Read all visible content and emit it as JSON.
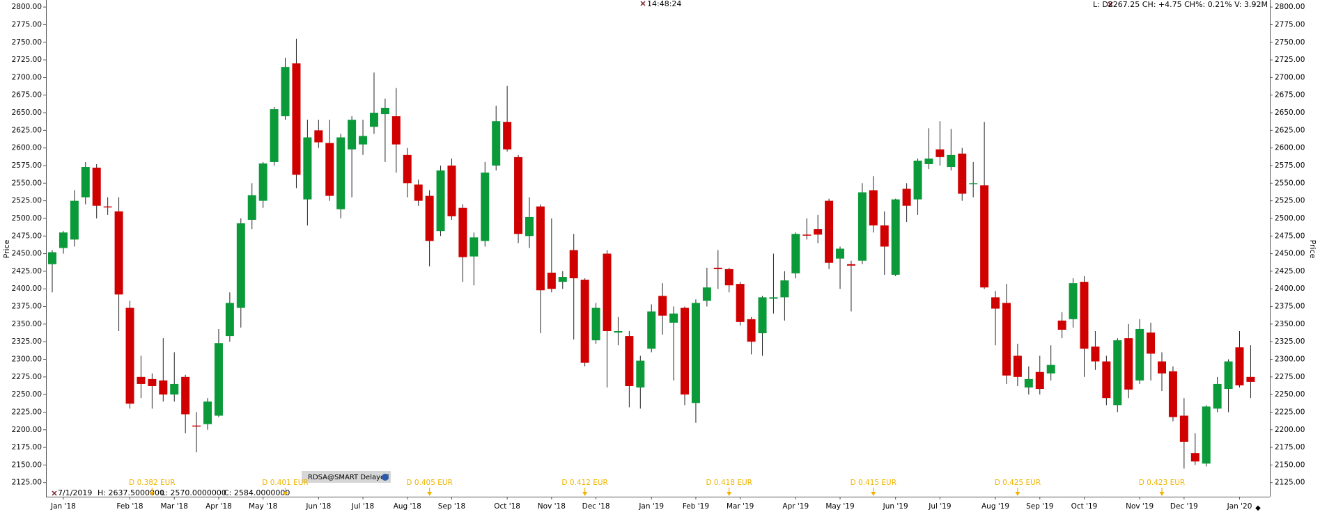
{
  "chart_data": {
    "type": "candlestick",
    "y_label": "Price",
    "time": "14:48:24",
    "quote": "L: D2267.25 CH: +4.75 CH%: 0.21% V: 3.92M",
    "info": {
      "date": "7/1/2019",
      "high": "H: 2637.5000000",
      "low": "L: 2570.0000000",
      "close": "C: 2584.0000000"
    },
    "symbol": "RDSA@SMART Delayed",
    "up_color": "#0b9a39",
    "down_color": "#d00000",
    "annotation_color": "#f0b400",
    "ylim": [
      2105,
      2810
    ],
    "yticks": [
      {
        "value": 2125,
        "label": "2125.00"
      },
      {
        "value": 2150,
        "label": "2150.00"
      },
      {
        "value": 2175,
        "label": "2175.00"
      },
      {
        "value": 2200,
        "label": "2200.00"
      },
      {
        "value": 2225,
        "label": "2225.00"
      },
      {
        "value": 2250,
        "label": "2250.00"
      },
      {
        "value": 2275,
        "label": "2275.00"
      },
      {
        "value": 2300,
        "label": "2300.00"
      },
      {
        "value": 2325,
        "label": "2325.00"
      },
      {
        "value": 2350,
        "label": "2350.00"
      },
      {
        "value": 2375,
        "label": "2375.00"
      },
      {
        "value": 2400,
        "label": "2400.00"
      },
      {
        "value": 2425,
        "label": "2425.00"
      },
      {
        "value": 2450,
        "label": "2450.00"
      },
      {
        "value": 2475,
        "label": "2475.00"
      },
      {
        "value": 2500,
        "label": "2500.00"
      },
      {
        "value": 2525,
        "label": "2525.00"
      },
      {
        "value": 2550,
        "label": "2550.00"
      },
      {
        "value": 2575,
        "label": "2575.00"
      },
      {
        "value": 2600,
        "label": "2600.00"
      },
      {
        "value": 2625,
        "label": "2625.00"
      },
      {
        "value": 2650,
        "label": "2650.00"
      },
      {
        "value": 2675,
        "label": "2675.00"
      },
      {
        "value": 2700,
        "label": "2700.00"
      },
      {
        "value": 2725,
        "label": "2725.00"
      },
      {
        "value": 2750,
        "label": "2750.00"
      },
      {
        "value": 2775,
        "label": "2775.00"
      },
      {
        "value": 2800,
        "label": "2800.00"
      }
    ],
    "categories": [
      null,
      "Jan '18",
      null,
      null,
      null,
      null,
      null,
      "Feb '18",
      null,
      null,
      null,
      "Mar '18",
      null,
      null,
      null,
      "Apr '18",
      null,
      null,
      null,
      "May '18",
      null,
      null,
      null,
      null,
      "Jun '18",
      null,
      null,
      null,
      "Jul '18",
      null,
      null,
      null,
      "Aug '18",
      null,
      null,
      null,
      "Sep '18",
      null,
      null,
      null,
      null,
      "Oct '18",
      null,
      null,
      null,
      "Nov '18",
      null,
      null,
      null,
      "Dec '18",
      null,
      null,
      null,
      null,
      "Jan '19",
      null,
      null,
      null,
      "Feb '19",
      null,
      null,
      null,
      "Mar '19",
      null,
      null,
      null,
      null,
      "Apr '19",
      null,
      null,
      null,
      "May '19",
      null,
      null,
      null,
      null,
      "Jun '19",
      null,
      null,
      null,
      "Jul '19",
      null,
      null,
      null,
      null,
      "Aug '19",
      null,
      null,
      null,
      "Sep '19",
      null,
      null,
      null,
      "Oct '19",
      null,
      null,
      null,
      null,
      "Nov '19",
      null,
      null,
      null,
      "Dec '19",
      null,
      null,
      null,
      null,
      "Jan '20",
      null
    ],
    "dividends": [
      null,
      null,
      null,
      null,
      null,
      null,
      null,
      null,
      null,
      "D 0.382 EUR",
      null,
      null,
      null,
      null,
      null,
      null,
      null,
      null,
      null,
      null,
      null,
      "D 0.401 EUR",
      null,
      null,
      null,
      null,
      null,
      null,
      null,
      null,
      null,
      null,
      null,
      null,
      "D 0.405 EUR",
      null,
      null,
      null,
      null,
      null,
      null,
      null,
      null,
      null,
      null,
      null,
      null,
      null,
      "D 0.412 EUR",
      null,
      null,
      null,
      null,
      null,
      null,
      null,
      null,
      null,
      null,
      null,
      null,
      "D 0.418 EUR",
      null,
      null,
      null,
      null,
      null,
      null,
      null,
      null,
      null,
      null,
      null,
      null,
      "D 0.415 EUR",
      null,
      null,
      null,
      null,
      null,
      null,
      null,
      null,
      null,
      null,
      null,
      null,
      "D 0.425 EUR",
      null,
      null,
      null,
      null,
      null,
      null,
      null,
      null,
      null,
      null,
      null,
      null,
      "D 0.423 EUR",
      null,
      null,
      null,
      null,
      null,
      null,
      null,
      null
    ],
    "open": [
      2435,
      2458,
      2470,
      2530,
      2572,
      2517,
      2510,
      2373,
      2275,
      2272,
      2270,
      2250,
      2275,
      2206,
      2208,
      2220,
      2333,
      2373,
      2498,
      2525,
      2580,
      2645,
      2720,
      2527,
      2625,
      2607,
      2513,
      2598,
      2605,
      2630,
      2648,
      2645,
      2590,
      2548,
      2532,
      2482,
      2575,
      2515,
      2446,
      2468,
      2575,
      2637,
      2587,
      2475,
      2517,
      2423,
      2410,
      2455,
      2413,
      2327,
      2450,
      2338,
      2333,
      2260,
      2315,
      2390,
      2352,
      2373,
      2238,
      2383,
      2430,
      2428,
      2407,
      2357,
      2337,
      2386,
      2388,
      2422,
      2477,
      2485,
      2525,
      2443,
      2435,
      2440,
      2540,
      2490,
      2420,
      2542,
      2527,
      2577,
      2598,
      2573,
      2592,
      2549,
      2547,
      2388,
      2380,
      2305,
      2260,
      2282,
      2280,
      2355,
      2357,
      2410,
      2318,
      2297,
      2235,
      2330,
      2270,
      2338,
      2297,
      2283,
      2220,
      2167,
      2152,
      2230,
      2258,
      2317,
      2275
    ],
    "high": [
      2455,
      2482,
      2540,
      2580,
      2577,
      2530,
      2530,
      2383,
      2305,
      2280,
      2330,
      2310,
      2278,
      2225,
      2245,
      2343,
      2395,
      2500,
      2550,
      2580,
      2658,
      2728,
      2755,
      2640,
      2640,
      2640,
      2620,
      2645,
      2640,
      2707,
      2670,
      2685,
      2600,
      2555,
      2540,
      2575,
      2585,
      2520,
      2480,
      2580,
      2660,
      2688,
      2590,
      2530,
      2520,
      2500,
      2425,
      2478,
      2415,
      2380,
      2455,
      2360,
      2340,
      2305,
      2378,
      2408,
      2375,
      2375,
      2385,
      2430,
      2455,
      2430,
      2410,
      2360,
      2390,
      2450,
      2425,
      2480,
      2500,
      2505,
      2528,
      2460,
      2440,
      2550,
      2560,
      2510,
      2528,
      2550,
      2585,
      2628,
      2638,
      2627,
      2600,
      2580,
      2637,
      2397,
      2407,
      2322,
      2290,
      2305,
      2320,
      2367,
      2415,
      2418,
      2340,
      2305,
      2330,
      2350,
      2357,
      2352,
      2310,
      2290,
      2245,
      2195,
      2235,
      2275,
      2300,
      2340,
      2320
    ],
    "low": [
      2395,
      2450,
      2460,
      2520,
      2500,
      2505,
      2340,
      2230,
      2245,
      2230,
      2240,
      2240,
      2195,
      2168,
      2200,
      2218,
      2325,
      2345,
      2485,
      2515,
      2575,
      2640,
      2543,
      2490,
      2600,
      2525,
      2500,
      2530,
      2590,
      2620,
      2580,
      2565,
      2530,
      2518,
      2432,
      2475,
      2498,
      2410,
      2405,
      2460,
      2568,
      2595,
      2465,
      2458,
      2337,
      2395,
      2400,
      2328,
      2290,
      2322,
      2260,
      2320,
      2232,
      2230,
      2310,
      2335,
      2270,
      2235,
      2210,
      2375,
      2400,
      2395,
      2348,
      2307,
      2305,
      2365,
      2355,
      2415,
      2470,
      2465,
      2428,
      2400,
      2368,
      2435,
      2480,
      2420,
      2418,
      2495,
      2505,
      2570,
      2575,
      2568,
      2525,
      2530,
      2400,
      2320,
      2265,
      2262,
      2250,
      2250,
      2270,
      2330,
      2345,
      2275,
      2285,
      2235,
      2225,
      2245,
      2265,
      2270,
      2255,
      2212,
      2145,
      2150,
      2148,
      2225,
      2225,
      2260,
      2245
    ],
    "close": [
      2452,
      2480,
      2525,
      2573,
      2518,
      2516,
      2392,
      2237,
      2265,
      2262,
      2250,
      2265,
      2222,
      2205,
      2240,
      2323,
      2380,
      2493,
      2533,
      2578,
      2655,
      2715,
      2562,
      2615,
      2608,
      2532,
      2615,
      2640,
      2617,
      2650,
      2657,
      2605,
      2550,
      2525,
      2468,
      2568,
      2503,
      2445,
      2473,
      2565,
      2638,
      2598,
      2478,
      2502,
      2398,
      2400,
      2417,
      2415,
      2295,
      2373,
      2340,
      2340,
      2262,
      2298,
      2368,
      2362,
      2365,
      2250,
      2380,
      2402,
      2428,
      2405,
      2353,
      2325,
      2388,
      2388,
      2412,
      2478,
      2476,
      2477,
      2437,
      2457,
      2433,
      2537,
      2490,
      2460,
      2527,
      2518,
      2582,
      2585,
      2587,
      2590,
      2535,
      2550,
      2402,
      2372,
      2277,
      2275,
      2272,
      2258,
      2292,
      2342,
      2408,
      2315,
      2297,
      2245,
      2327,
      2257,
      2343,
      2308,
      2280,
      2218,
      2183,
      2155,
      2233,
      2265,
      2297,
      2263,
      2268
    ]
  }
}
